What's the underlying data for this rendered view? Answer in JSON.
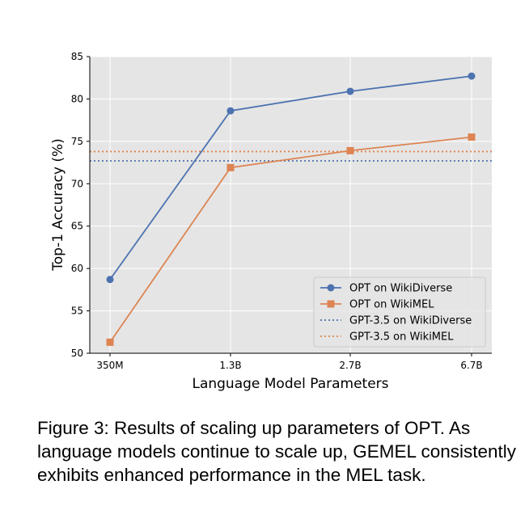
{
  "chart_data": {
    "type": "line",
    "categories": [
      "350M",
      "1.3B",
      "2.7B",
      "6.7B"
    ],
    "series": [
      {
        "name": "OPT on WikiDiverse",
        "values": [
          58.7,
          78.6,
          80.9,
          82.7
        ],
        "color": "#4c72b0",
        "marker": "circle"
      },
      {
        "name": "OPT on WikiMEL",
        "values": [
          51.3,
          71.9,
          73.9,
          75.5
        ],
        "color": "#dd8452",
        "marker": "square"
      }
    ],
    "reference_lines": [
      {
        "name": "GPT-3.5 on WikiDiverse",
        "value": 72.7,
        "color": "#4c72b0",
        "style": "dotted"
      },
      {
        "name": "GPT-3.5 on WikiMEL",
        "value": 73.8,
        "color": "#dd8452",
        "style": "dotted"
      }
    ],
    "xlabel": "Language Model Parameters",
    "ylabel": "Top-1 Accuracy (%)",
    "ylim": [
      50,
      85
    ],
    "yticks": [
      50,
      55,
      60,
      65,
      70,
      75,
      80,
      85
    ],
    "grid": true,
    "legend": "lower-right",
    "background_color": "#e5e5e5"
  },
  "caption": {
    "text": "Figure 3: Results of scaling up parameters of OPT. As language models continue to scale up, GEMEL consistently exhibits enhanced performance in the MEL task."
  }
}
